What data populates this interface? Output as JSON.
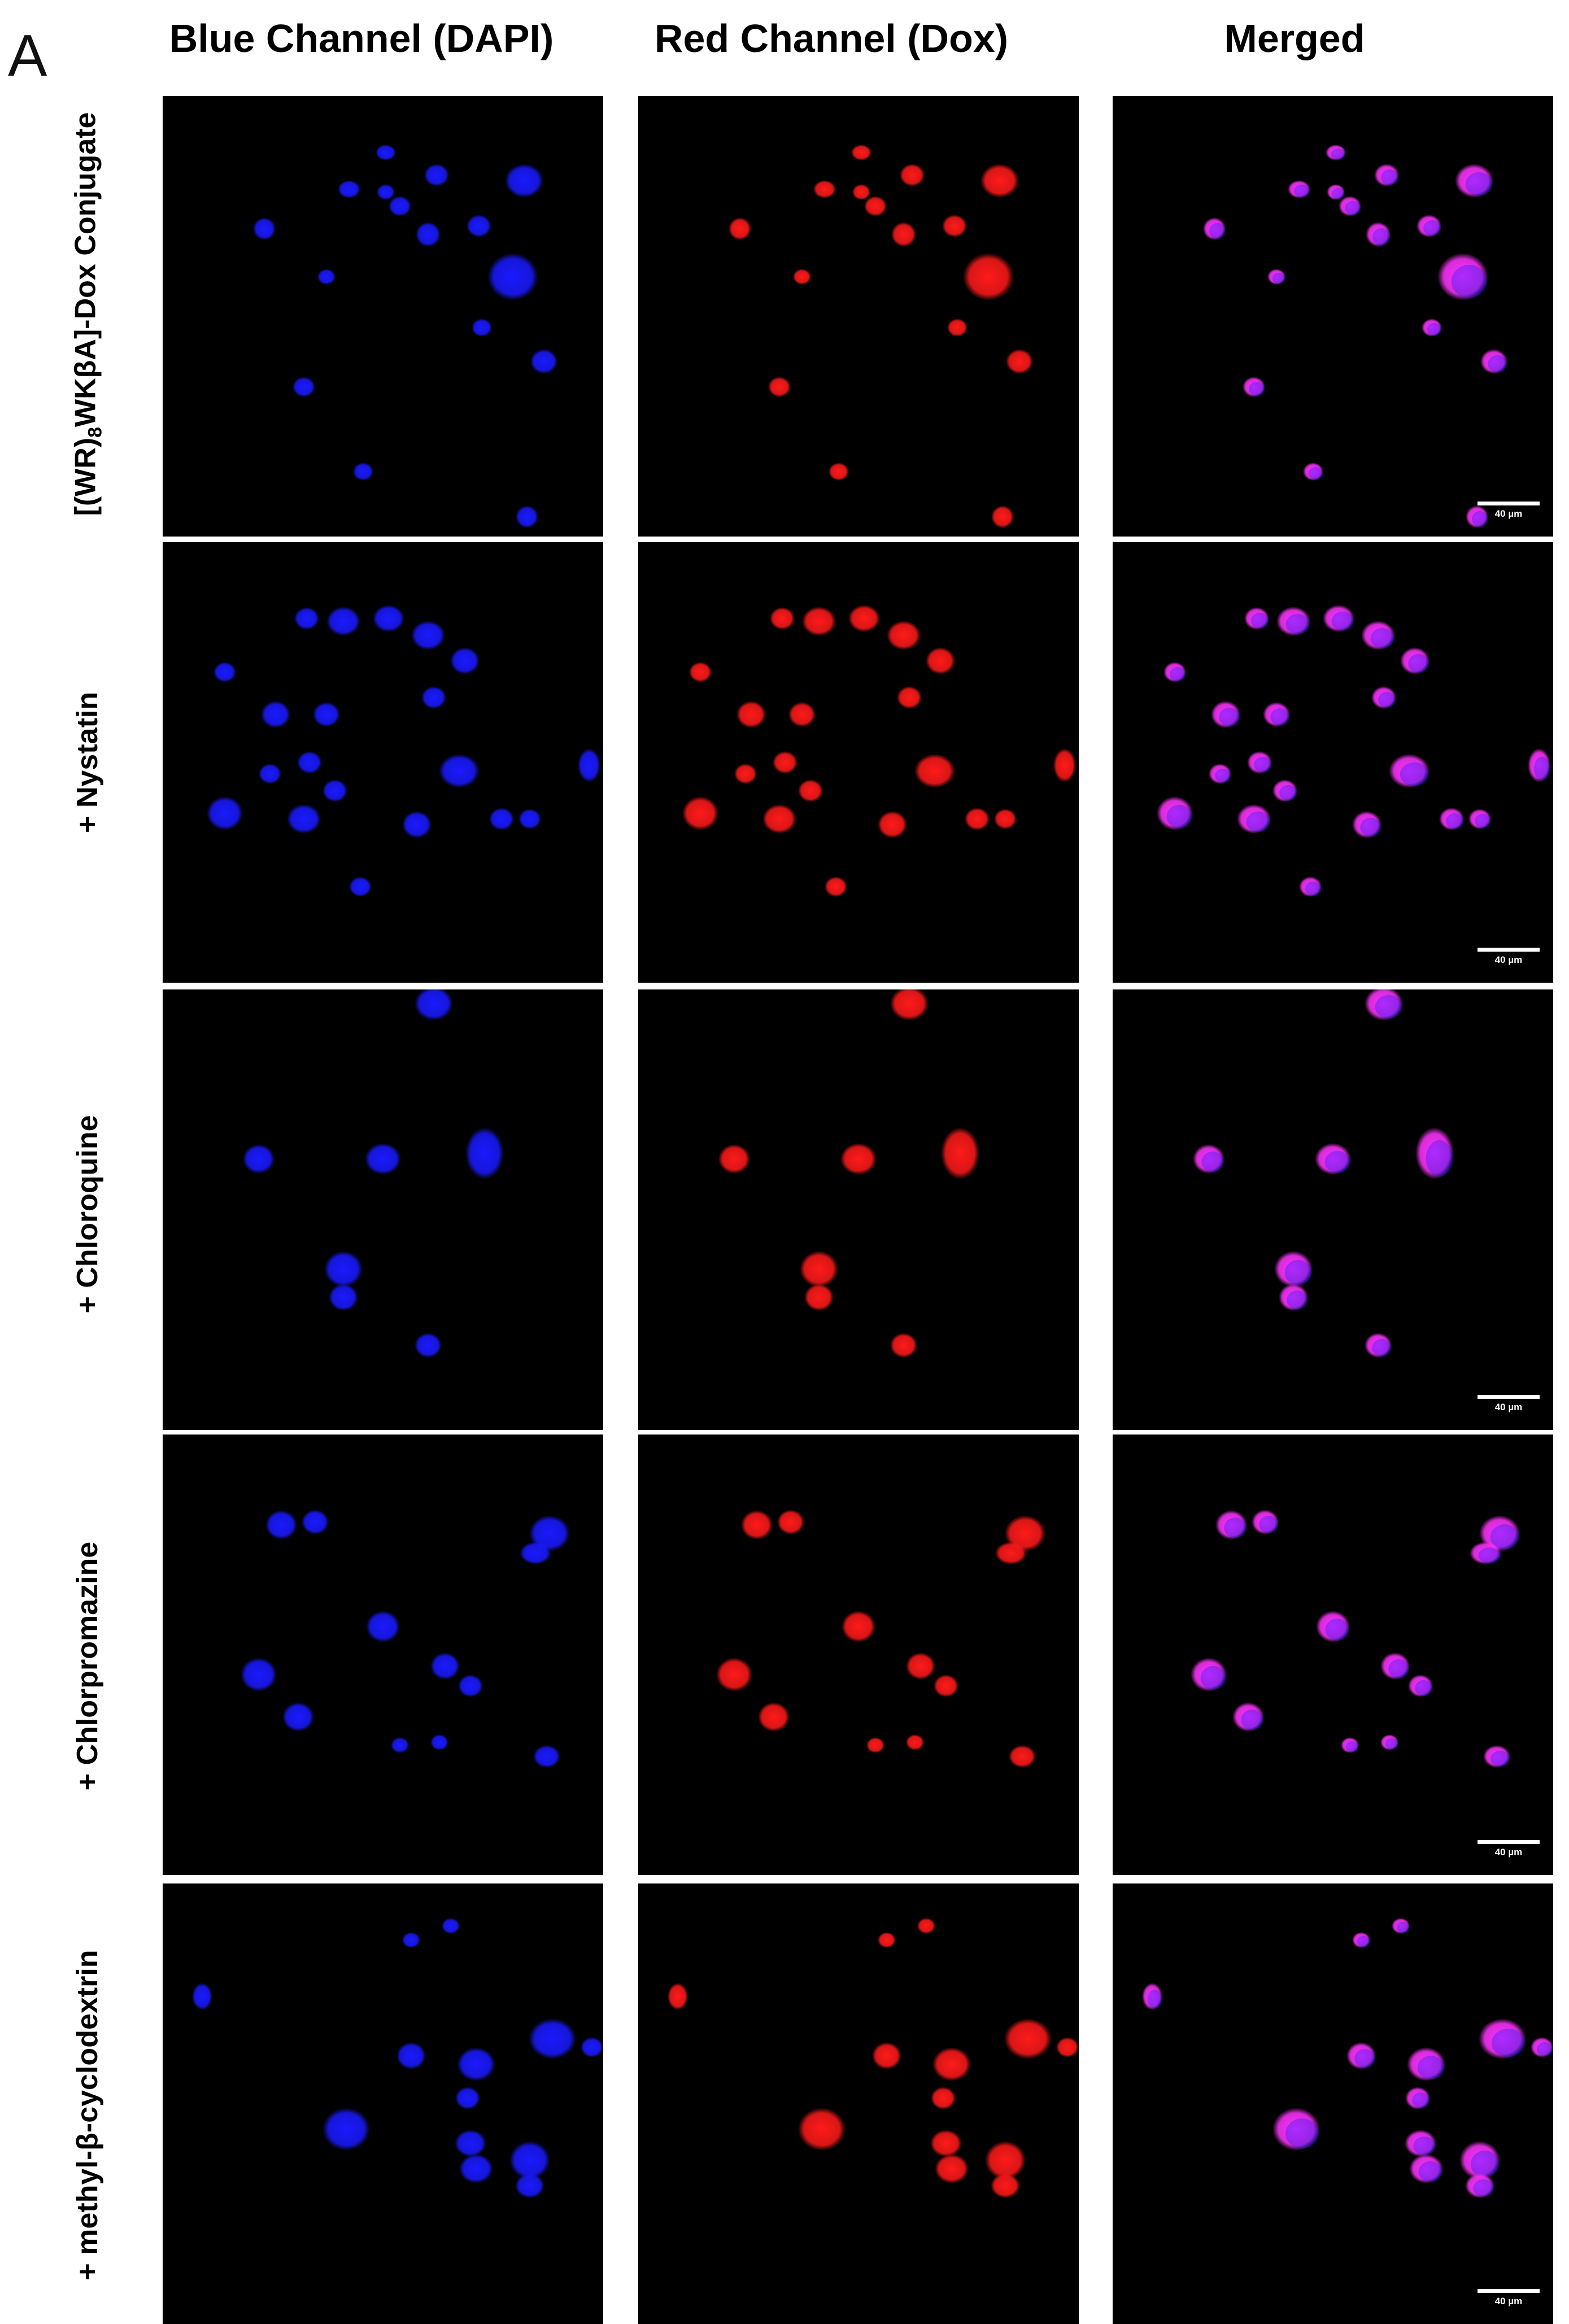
{
  "panel_letter": "A",
  "columns": [
    {
      "key": "blue",
      "label": "Blue Channel (DAPI)"
    },
    {
      "key": "red",
      "label": "Red Channel (Dox)"
    },
    {
      "key": "merged",
      "label": "Merged"
    }
  ],
  "rows": [
    {
      "label_pre": "[(WR)",
      "label_sub": "8",
      "label_post": "WKβA]-Dox Conjugate"
    },
    {
      "label_pre": "+ Nystatin",
      "label_sub": "",
      "label_post": ""
    },
    {
      "label_pre": "+ Chloroquine",
      "label_sub": "",
      "label_post": ""
    },
    {
      "label_pre": "+ Chlorpromazine",
      "label_sub": "",
      "label_post": ""
    },
    {
      "label_pre": "+ methyl-β-cyclodextrin",
      "label_sub": "",
      "label_post": ""
    }
  ],
  "scale_bar_label": "40 µm",
  "colors": {
    "background": "#000000",
    "dapi": "#1a1aff",
    "dox": "#ff1a1a",
    "merged": "#ff33ff",
    "text": "#000000",
    "scale_bar": "#ffffff"
  }
}
